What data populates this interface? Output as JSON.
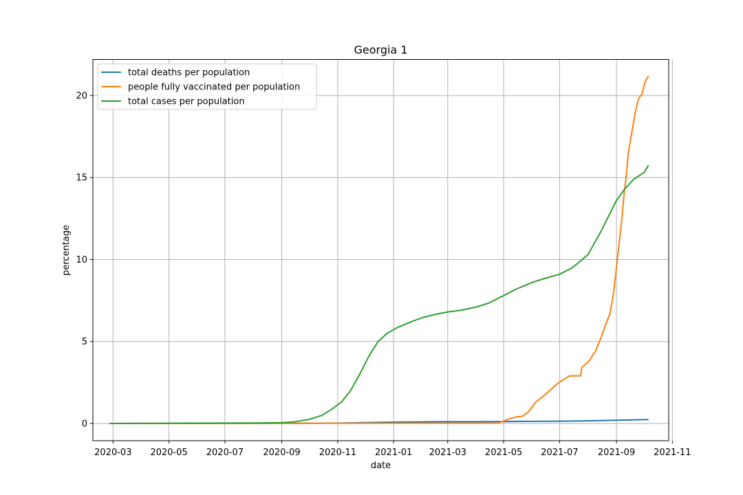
{
  "chart_data": {
    "type": "line",
    "title": "Georgia 1",
    "xlabel": "date",
    "ylabel": "percentage",
    "xlim": [
      "2020-02-08",
      "2021-10-28"
    ],
    "ylim": [
      -1.05,
      22.2
    ],
    "x_ticks": [
      "2020-03",
      "2020-05",
      "2020-07",
      "2020-09",
      "2020-11",
      "2021-01",
      "2021-03",
      "2021-05",
      "2021-07",
      "2021-09",
      "2021-11"
    ],
    "y_ticks": [
      0,
      5,
      10,
      15,
      20
    ],
    "grid": true,
    "legend_position": "top-left",
    "series": [
      {
        "name": "total deaths per population",
        "color": "#1f77b4",
        "points": [
          [
            "2020-02-26",
            0.0
          ],
          [
            "2020-09-01",
            0.01
          ],
          [
            "2020-10-01",
            0.01
          ],
          [
            "2020-11-01",
            0.02
          ],
          [
            "2020-12-01",
            0.05
          ],
          [
            "2021-01-01",
            0.08
          ],
          [
            "2021-02-01",
            0.1
          ],
          [
            "2021-03-01",
            0.11
          ],
          [
            "2021-04-01",
            0.11
          ],
          [
            "2021-05-01",
            0.12
          ],
          [
            "2021-06-01",
            0.13
          ],
          [
            "2021-07-01",
            0.14
          ],
          [
            "2021-08-01",
            0.16
          ],
          [
            "2021-09-01",
            0.2
          ],
          [
            "2021-10-06",
            0.24
          ]
        ]
      },
      {
        "name": "people fully vaccinated per population",
        "color": "#ff7f0e",
        "points": [
          [
            "2020-02-26",
            0.0
          ],
          [
            "2021-04-25",
            0.02
          ],
          [
            "2021-05-01",
            0.15
          ],
          [
            "2021-05-08",
            0.3
          ],
          [
            "2021-05-15",
            0.4
          ],
          [
            "2021-05-22",
            0.45
          ],
          [
            "2021-05-28",
            0.7
          ],
          [
            "2021-06-05",
            1.3
          ],
          [
            "2021-06-12",
            1.6
          ],
          [
            "2021-06-20",
            2.0
          ],
          [
            "2021-06-28",
            2.4
          ],
          [
            "2021-07-06",
            2.7
          ],
          [
            "2021-07-12",
            2.9
          ],
          [
            "2021-07-24",
            2.9
          ],
          [
            "2021-07-25",
            3.4
          ],
          [
            "2021-08-02",
            3.8
          ],
          [
            "2021-08-09",
            4.4
          ],
          [
            "2021-08-15",
            5.2
          ],
          [
            "2021-08-20",
            6.0
          ],
          [
            "2021-08-25",
            6.7
          ],
          [
            "2021-08-29",
            8.0
          ],
          [
            "2021-09-01",
            9.5
          ],
          [
            "2021-09-04",
            11.0
          ],
          [
            "2021-09-07",
            12.5
          ],
          [
            "2021-09-09",
            13.8
          ],
          [
            "2021-09-12",
            15.3
          ],
          [
            "2021-09-14",
            16.5
          ],
          [
            "2021-09-17",
            17.5
          ],
          [
            "2021-09-21",
            18.8
          ],
          [
            "2021-09-25",
            19.8
          ],
          [
            "2021-09-29",
            20.1
          ],
          [
            "2021-10-02",
            20.8
          ],
          [
            "2021-10-06",
            21.2
          ]
        ]
      },
      {
        "name": "total cases per population",
        "color": "#2ca02c",
        "points": [
          [
            "2020-02-26",
            0.0
          ],
          [
            "2020-04-01",
            0.01
          ],
          [
            "2020-06-01",
            0.02
          ],
          [
            "2020-08-01",
            0.03
          ],
          [
            "2020-09-01",
            0.05
          ],
          [
            "2020-09-15",
            0.1
          ],
          [
            "2020-10-01",
            0.25
          ],
          [
            "2020-10-15",
            0.5
          ],
          [
            "2020-10-25",
            0.85
          ],
          [
            "2020-11-05",
            1.3
          ],
          [
            "2020-11-15",
            2.0
          ],
          [
            "2020-11-25",
            3.0
          ],
          [
            "2020-12-05",
            4.1
          ],
          [
            "2020-12-15",
            5.0
          ],
          [
            "2020-12-25",
            5.5
          ],
          [
            "2021-01-05",
            5.85
          ],
          [
            "2021-01-20",
            6.2
          ],
          [
            "2021-02-01",
            6.45
          ],
          [
            "2021-02-15",
            6.65
          ],
          [
            "2021-03-01",
            6.8
          ],
          [
            "2021-03-15",
            6.9
          ],
          [
            "2021-04-01",
            7.1
          ],
          [
            "2021-04-15",
            7.35
          ],
          [
            "2021-05-01",
            7.8
          ],
          [
            "2021-05-15",
            8.2
          ],
          [
            "2021-06-01",
            8.6
          ],
          [
            "2021-06-15",
            8.85
          ],
          [
            "2021-07-01",
            9.1
          ],
          [
            "2021-07-15",
            9.5
          ],
          [
            "2021-08-01",
            10.3
          ],
          [
            "2021-08-15",
            11.7
          ],
          [
            "2021-09-01",
            13.6
          ],
          [
            "2021-09-10",
            14.3
          ],
          [
            "2021-09-20",
            14.9
          ],
          [
            "2021-10-01",
            15.3
          ],
          [
            "2021-10-06",
            15.75
          ]
        ]
      }
    ]
  }
}
